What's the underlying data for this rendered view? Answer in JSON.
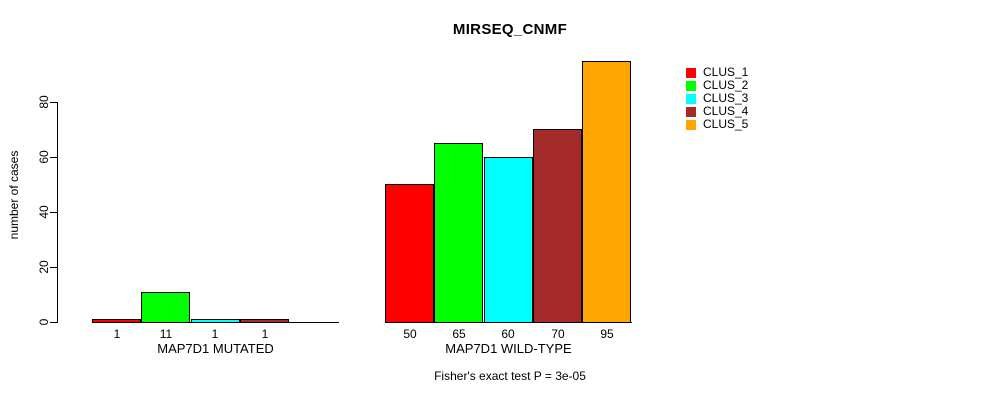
{
  "chart_data": {
    "type": "bar",
    "title": "MIRSEQ_CNMF",
    "ylabel": "number of cases",
    "xlabel": "",
    "subtitle": "Fisher's exact test P = 3e-05",
    "ylim": [
      0,
      95
    ],
    "yticks": [
      0,
      20,
      40,
      60,
      80
    ],
    "grid": false,
    "legend_position": "right",
    "legend": [
      {
        "label": "CLUS_1",
        "color": "#ff0000"
      },
      {
        "label": "CLUS_2",
        "color": "#00ff00"
      },
      {
        "label": "CLUS_3",
        "color": "#00ffff"
      },
      {
        "label": "CLUS_4",
        "color": "#a52a2a"
      },
      {
        "label": "CLUS_5",
        "color": "#ffa500"
      }
    ],
    "groups": [
      {
        "label": "MAP7D1 MUTATED",
        "bars": [
          {
            "cluster": "CLUS_1",
            "value": 1,
            "value_label": "1",
            "color": "#ff0000"
          },
          {
            "cluster": "CLUS_2",
            "value": 11,
            "value_label": "11",
            "color": "#00ff00"
          },
          {
            "cluster": "CLUS_3",
            "value": 1,
            "value_label": "1",
            "color": "#00ffff"
          },
          {
            "cluster": "CLUS_4",
            "value": 1,
            "value_label": "1",
            "color": "#a52a2a"
          },
          {
            "cluster": "CLUS_5",
            "value": 0,
            "value_label": "",
            "color": "#ffa500"
          }
        ]
      },
      {
        "label": "MAP7D1 WILD-TYPE",
        "bars": [
          {
            "cluster": "CLUS_1",
            "value": 50,
            "value_label": "50",
            "color": "#ff0000"
          },
          {
            "cluster": "CLUS_2",
            "value": 65,
            "value_label": "65",
            "color": "#00ff00"
          },
          {
            "cluster": "CLUS_3",
            "value": 60,
            "value_label": "60",
            "color": "#00ffff"
          },
          {
            "cluster": "CLUS_4",
            "value": 70,
            "value_label": "70",
            "color": "#a52a2a"
          },
          {
            "cluster": "CLUS_5",
            "value": 95,
            "value_label": "95",
            "color": "#ffa500"
          }
        ]
      }
    ]
  }
}
